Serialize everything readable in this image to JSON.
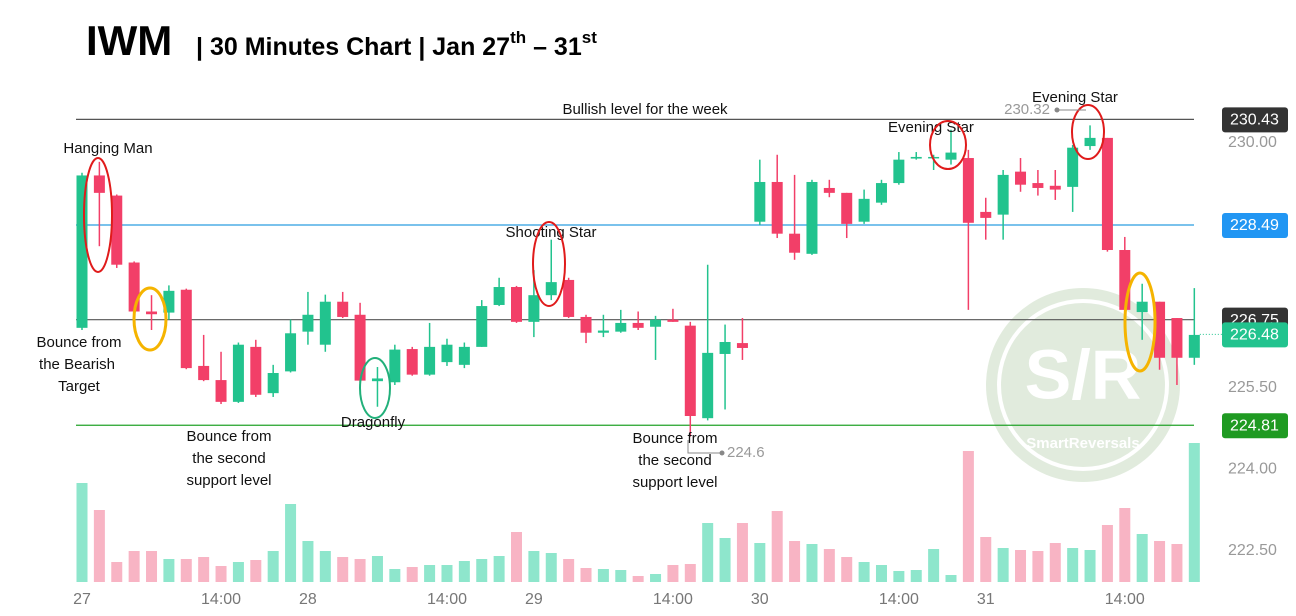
{
  "chart_data": {
    "type": "candlestick",
    "title": "IWM",
    "subtitle": [
      "| 30 Minutes Chart | Jan 27",
      "th",
      " – 31",
      "st"
    ],
    "categories": [
      "27",
      null,
      null,
      null,
      null,
      null,
      null,
      null,
      "14:00",
      null,
      null,
      null,
      null,
      "28",
      null,
      null,
      null,
      null,
      null,
      null,
      null,
      "14:00",
      null,
      null,
      null,
      null,
      "29",
      null,
      null,
      null,
      null,
      null,
      null,
      null,
      "14:00",
      null,
      null,
      null,
      null,
      "30",
      null,
      null,
      null,
      null,
      null,
      null,
      null,
      "14:00",
      null,
      null,
      null,
      null,
      "31",
      null,
      null,
      null,
      null,
      null,
      null,
      null,
      "14:00",
      null,
      null,
      null,
      null
    ],
    "open": [
      226.6,
      229.4,
      229.03,
      227.8,
      226.9,
      226.88,
      227.3,
      225.9,
      225.64,
      225.24,
      226.25,
      225.4,
      225.8,
      226.53,
      226.29,
      227.08,
      226.84,
      225.62,
      225.6,
      226.21,
      225.74,
      225.97,
      225.92,
      226.25,
      227.02,
      227.35,
      226.71,
      227.2,
      227.48,
      226.8,
      226.51,
      226.53,
      226.69,
      226.62,
      226.75,
      226.64,
      224.94,
      226.12,
      226.32,
      228.55,
      229.28,
      228.33,
      227.96,
      229.17,
      229.08,
      228.55,
      228.9,
      229.26,
      229.71,
      229.72,
      229.69,
      229.72,
      228.73,
      228.68,
      229.47,
      229.26,
      229.21,
      229.19,
      229.94,
      230.09,
      228.03,
      226.89,
      227.08,
      226.78,
      226.05
    ],
    "high": [
      229.45,
      229.65,
      229.05,
      227.82,
      227.2,
      227.38,
      227.32,
      226.47,
      226.16,
      226.33,
      226.38,
      225.92,
      226.75,
      227.26,
      227.21,
      227.26,
      227.06,
      225.88,
      226.29,
      226.25,
      226.69,
      226.4,
      226.33,
      227.11,
      227.52,
      227.37,
      227.66,
      228.22,
      227.52,
      226.84,
      226.84,
      226.93,
      226.9,
      226.82,
      226.95,
      226.71,
      227.76,
      226.66,
      226.78,
      229.69,
      229.78,
      229.41,
      229.32,
      229.32,
      229.08,
      229.14,
      229.32,
      229.83,
      229.83,
      229.78,
      230.24,
      229.87,
      228.99,
      229.5,
      229.72,
      229.5,
      229.5,
      229.96,
      230.32,
      230.09,
      228.27,
      227.41,
      227.08,
      226.78,
      227.33
    ],
    "low": [
      226.56,
      228.1,
      227.7,
      226.88,
      226.56,
      226.75,
      225.84,
      225.62,
      225.2,
      225.22,
      225.33,
      225.33,
      225.78,
      226.29,
      226.16,
      226.78,
      225.59,
      225.15,
      225.55,
      225.72,
      225.72,
      225.9,
      225.86,
      226.25,
      227.0,
      226.69,
      226.43,
      227.11,
      226.78,
      226.32,
      226.43,
      226.51,
      226.56,
      226.01,
      226.71,
      224.6,
      224.9,
      225.1,
      226.01,
      228.49,
      228.25,
      227.85,
      227.94,
      229.0,
      228.25,
      228.51,
      228.86,
      229.23,
      229.69,
      229.5,
      229.6,
      226.93,
      228.22,
      228.22,
      229.1,
      229.03,
      228.95,
      228.73,
      229.87,
      228.0,
      226.89,
      226.38,
      225.83,
      225.55,
      225.92
    ],
    "close": [
      229.4,
      229.08,
      227.76,
      226.9,
      226.85,
      227.28,
      225.86,
      225.64,
      225.24,
      226.29,
      225.37,
      225.77,
      226.5,
      226.84,
      227.08,
      226.8,
      225.63,
      225.67,
      226.2,
      225.74,
      226.25,
      226.29,
      226.25,
      227.0,
      227.35,
      226.71,
      227.2,
      227.44,
      226.8,
      226.51,
      226.55,
      226.69,
      226.6,
      226.75,
      226.71,
      224.98,
      226.14,
      226.34,
      226.23,
      229.28,
      228.33,
      227.98,
      229.28,
      229.08,
      228.51,
      228.97,
      229.26,
      229.69,
      229.74,
      229.74,
      229.82,
      228.53,
      228.62,
      229.41,
      229.23,
      229.17,
      229.14,
      229.91,
      230.09,
      228.03,
      226.93,
      227.08,
      226.05,
      226.05,
      226.47
    ],
    "volume": [
      99,
      72,
      20,
      31,
      31,
      23,
      23,
      25,
      16,
      20,
      22,
      31,
      78,
      41,
      31,
      25,
      23,
      26,
      13,
      15,
      17,
      17,
      21,
      23,
      26,
      50,
      31,
      29,
      23,
      14,
      13,
      12,
      6,
      8,
      17,
      18,
      59,
      44,
      59,
      39,
      71,
      41,
      38,
      33,
      25,
      20,
      17,
      11,
      12,
      33,
      7,
      131,
      45,
      34,
      32,
      31,
      39,
      34,
      32,
      57,
      74,
      48,
      41,
      38,
      139
    ],
    "volume_lim": [
      0,
      160
    ],
    "up_color": "#22c38e",
    "down_color": "#f23f68",
    "up_volume_color": "#8ee6cc",
    "down_volume_color": "#f8b4c4",
    "ylim": [
      221.93,
      230.97
    ],
    "yticks": [
      {
        "value": 222.5,
        "label": "222.50"
      },
      {
        "value": 224,
        "label": "224.00"
      },
      {
        "value": 225.5,
        "label": "225.50"
      },
      {
        "value": 230,
        "label": "230.00"
      }
    ],
    "levels": [
      {
        "value": 230.43,
        "color": "#555555",
        "badge": "#333333"
      },
      {
        "value": 228.49,
        "color": "#2a9de0",
        "badge": "#2196f3"
      },
      {
        "value": 226.75,
        "color": "#555555",
        "badge": "#333333"
      },
      {
        "value": 224.81,
        "color": "#22a22a",
        "badge": "#1f9a22"
      }
    ],
    "last_price": {
      "value": 226.48,
      "badge": "#22c38e"
    },
    "annotations": [
      [
        "Bullish level for the week"
      ],
      [
        "Hanging Man"
      ],
      [
        "Bounce from",
        "the Bearish",
        "Target"
      ],
      [
        "Bounce from",
        "the second",
        "support level"
      ],
      [
        "Dragonfly"
      ],
      [
        "Shooting Star"
      ],
      [
        "Bounce from",
        "the second",
        "support level"
      ],
      [
        "Evening Star"
      ],
      [
        "Evening Star"
      ]
    ],
    "watermark": [
      "S/R",
      "SmartReversals"
    ]
  }
}
